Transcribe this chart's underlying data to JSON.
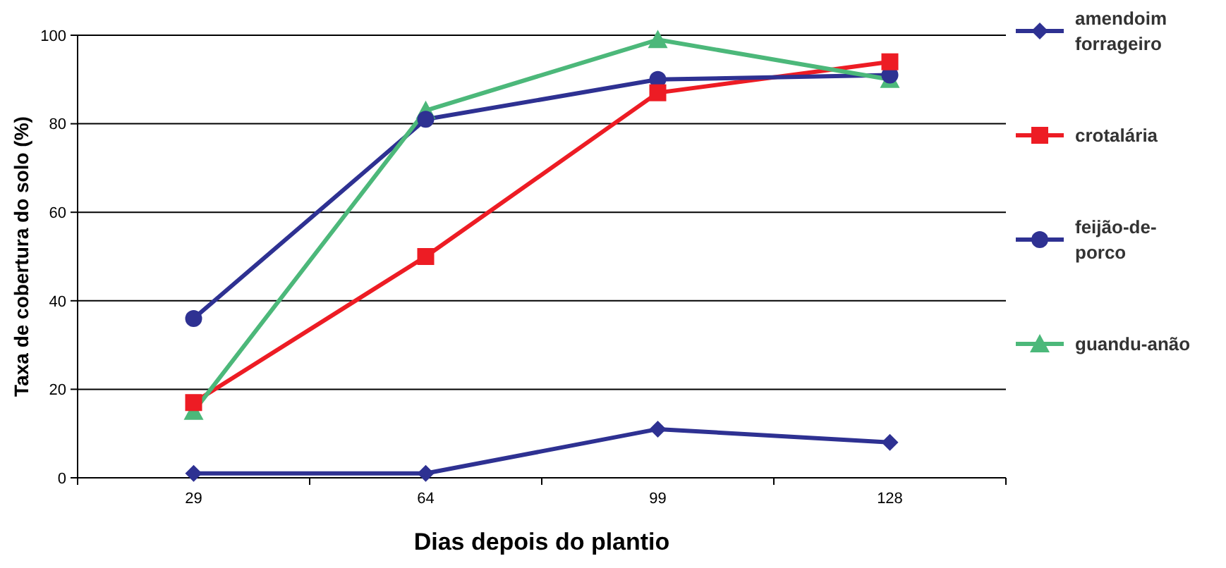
{
  "chart_data": {
    "type": "line",
    "xlabel": "Dias depois do plantio",
    "ylabel": "Taxa de cobertura do solo (%)",
    "categories": [
      "29",
      "64",
      "99",
      "128"
    ],
    "ylim": [
      0,
      100
    ],
    "yticks": [
      0,
      20,
      40,
      60,
      80,
      100
    ],
    "grid": "y",
    "legend": "right",
    "series": [
      {
        "name": "amendoim forrageiro",
        "color": "#2e3192",
        "marker": "diamond",
        "values": [
          1,
          1,
          11,
          8
        ]
      },
      {
        "name": "crotalária",
        "color": "#ed1c24",
        "marker": "square",
        "values": [
          17,
          50,
          87,
          94
        ]
      },
      {
        "name": "feijão-de-porco",
        "color": "#2e3192",
        "marker": "circle",
        "values": [
          36,
          81,
          90,
          91
        ]
      },
      {
        "name": "guandu-anão",
        "color": "#4cb87a",
        "marker": "triangle",
        "values": [
          15,
          83,
          99,
          90
        ]
      }
    ]
  }
}
